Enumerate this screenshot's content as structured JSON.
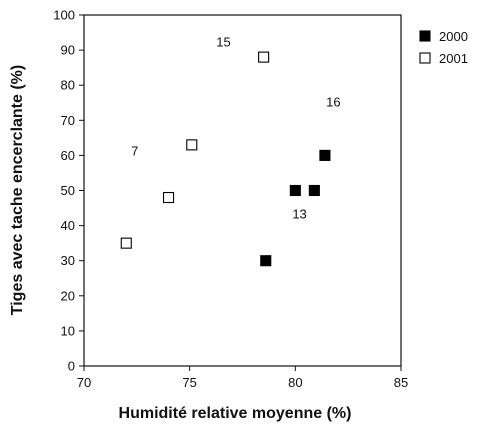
{
  "chart_data": {
    "type": "scatter",
    "title": "",
    "xlabel": "Humidité relative moyenne (%)",
    "ylabel": "Tiges avec tache encerclante (%)",
    "xlim": [
      70,
      85
    ],
    "ylim": [
      0,
      100
    ],
    "xticks": [
      70,
      75,
      80,
      85
    ],
    "yticks": [
      0,
      10,
      20,
      30,
      40,
      50,
      60,
      70,
      80,
      90,
      100
    ],
    "grid": false,
    "legend_position": "right",
    "series": [
      {
        "name": "2000",
        "marker": "filled-square",
        "color": "#000000",
        "points": [
          {
            "x": 78.6,
            "y": 30
          },
          {
            "x": 80.0,
            "y": 50
          },
          {
            "x": 80.9,
            "y": 50
          },
          {
            "x": 81.4,
            "y": 60
          }
        ]
      },
      {
        "name": "2001",
        "marker": "open-square",
        "color": "#000000",
        "points": [
          {
            "x": 72.0,
            "y": 35
          },
          {
            "x": 74.0,
            "y": 48
          },
          {
            "x": 75.1,
            "y": 63
          },
          {
            "x": 78.5,
            "y": 88
          }
        ]
      }
    ],
    "annotations": [
      {
        "text": "15",
        "x": 76.6,
        "y": 91
      },
      {
        "text": "7",
        "x": 72.4,
        "y": 60
      },
      {
        "text": "16",
        "x": 81.8,
        "y": 74
      },
      {
        "text": "13",
        "x": 80.2,
        "y": 42
      }
    ]
  }
}
